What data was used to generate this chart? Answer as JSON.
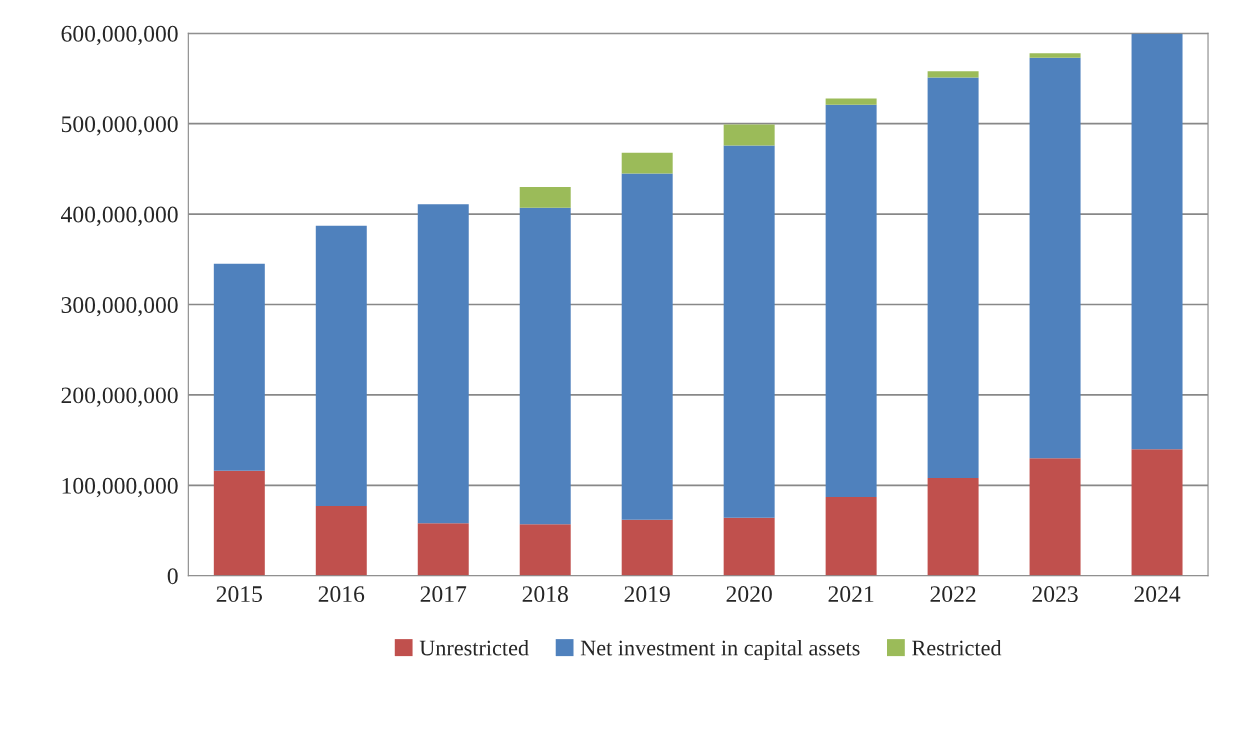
{
  "chart_data": {
    "type": "bar",
    "stacked": true,
    "categories": [
      "2015",
      "2016",
      "2017",
      "2018",
      "2019",
      "2020",
      "2021",
      "2022",
      "2023",
      "2024"
    ],
    "series": [
      {
        "name": "Unrestricted",
        "color": "#c0504d",
        "values": [
          116000000,
          77000000,
          58000000,
          57000000,
          62000000,
          64000000,
          87000000,
          108000000,
          130000000,
          140000000
        ]
      },
      {
        "name": "Net investment in capital assets",
        "color": "#4f81bd",
        "values": [
          229000000,
          310000000,
          353000000,
          350000000,
          383000000,
          412000000,
          434000000,
          443000000,
          443000000,
          460000000
        ]
      },
      {
        "name": "Restricted",
        "color": "#9bbb59",
        "values": [
          null,
          null,
          null,
          23000000,
          23000000,
          23000000,
          7000000,
          7000000,
          5000000,
          null
        ]
      }
    ],
    "ylim": [
      0,
      600000000
    ],
    "yticks": [
      0,
      {
        "value": 100000000,
        "label": "100,000,000"
      },
      {
        "value": 200000000,
        "label": "200,000,000"
      },
      {
        "value": 300000000,
        "label": "300,000,000"
      },
      {
        "value": 400000000,
        "label": "400,000,000"
      },
      {
        "value": 500000000,
        "label": "500,000,000"
      },
      {
        "value": 600000000,
        "label": "600,000,000"
      }
    ],
    "grid": "y",
    "legend": "bottom"
  }
}
